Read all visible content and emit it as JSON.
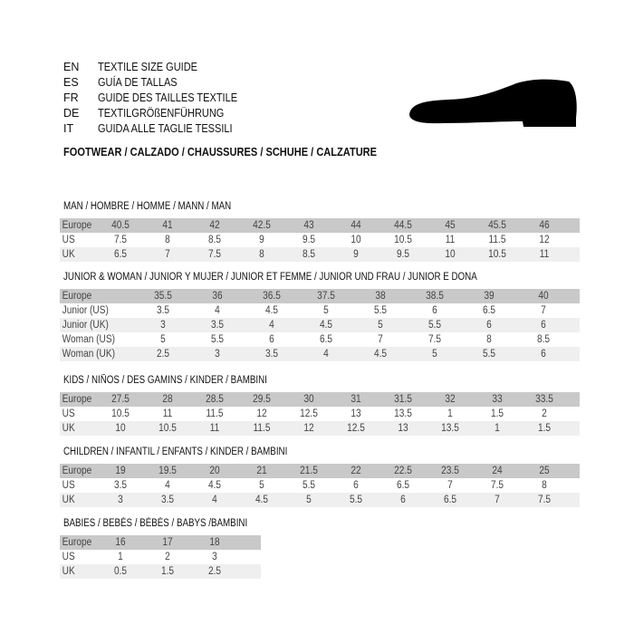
{
  "header": {
    "languages": [
      {
        "code": "EN",
        "title": "TEXTILE SIZE GUIDE"
      },
      {
        "code": "ES",
        "title": "GUÍA DE TALLAS"
      },
      {
        "code": "FR",
        "title": "GUIDE DES TAILLES TEXTILE"
      },
      {
        "code": "DE",
        "title": "TEXTILGRÖßENFÜHRUNG"
      },
      {
        "code": "IT",
        "title": "GUIDA ALLE TAGLIE TESSILI"
      }
    ],
    "footwear": "FOOTWEAR / CALZADO / CHAUSSURES / SCHUHE / CALZATURE",
    "icon": "shoe-icon"
  },
  "sections": [
    {
      "title": "MAN / HOMBRE / HOMME / MANN / MAN",
      "rows": [
        [
          "Europe",
          "40.5",
          "41",
          "42",
          "42.5",
          "43",
          "44",
          "44.5",
          "45",
          "45.5",
          "46"
        ],
        [
          "US",
          "7.5",
          "8",
          "8.5",
          "9",
          "9.5",
          "10",
          "10.5",
          "11",
          "11.5",
          "12"
        ],
        [
          "UK",
          "6.5",
          "7",
          "7.5",
          "8",
          "8.5",
          "9",
          "9.5",
          "10",
          "10.5",
          "11"
        ]
      ]
    },
    {
      "title": "JUNIOR & WOMAN / JUNIOR Y MUJER / JUNIOR ET FEMME / JUNIOR UND FRAU / JUNIOR E DONA",
      "rows": [
        [
          "Europe",
          "35.5",
          "36",
          "36.5",
          "37.5",
          "38",
          "38.5",
          "39",
          "40"
        ],
        [
          "Junior (US)",
          "3.5",
          "4",
          "4.5",
          "5",
          "5.5",
          "6",
          "6.5",
          "7"
        ],
        [
          "Junior (UK)",
          "3",
          "3.5",
          "4",
          "4.5",
          "5",
          "5.5",
          "6",
          "6"
        ],
        [
          "Woman (US)",
          "5",
          "5.5",
          "6",
          "6.5",
          "7",
          "7.5",
          "8",
          "8.5"
        ],
        [
          "Woman (UK)",
          "2.5",
          "3",
          "3.5",
          "4",
          "4.5",
          "5",
          "5.5",
          "6"
        ]
      ]
    },
    {
      "title": "KIDS / NIÑOS / DES GAMINS / KINDER / BAMBINI",
      "rows": [
        [
          "Europe",
          "27.5",
          "28",
          "28.5",
          "29.5",
          "30",
          "31",
          "31.5",
          "32",
          "33",
          "33.5"
        ],
        [
          "US",
          "10.5",
          "11",
          "11.5",
          "12",
          "12.5",
          "13",
          "13.5",
          "1",
          "1.5",
          "2"
        ],
        [
          "UK",
          "10",
          "10.5",
          "11",
          "11.5",
          "12",
          "12.5",
          "13",
          "13.5",
          "1",
          "1.5"
        ]
      ]
    },
    {
      "title": "CHILDREN / INFANTIL / ENFANTS / KINDER / BAMBINI",
      "rows": [
        [
          "Europe",
          "19",
          "19.5",
          "20",
          "21",
          "21.5",
          "22",
          "22.5",
          "23.5",
          "24",
          "25"
        ],
        [
          "US",
          "3.5",
          "4",
          "4.5",
          "5",
          "5.5",
          "6",
          "6.5",
          "7",
          "7.5",
          "8"
        ],
        [
          "UK",
          "3",
          "3.5",
          "4",
          "4.5",
          "5",
          "5.5",
          "6",
          "6.5",
          "7",
          "7.5"
        ]
      ]
    },
    {
      "title": "BABIES  / BEBÉS / BÉBÉS / BABYS /BAMBINI",
      "rows": [
        [
          "Europe",
          "16",
          "17",
          "18"
        ],
        [
          "US",
          "1",
          "2",
          "3"
        ],
        [
          "UK",
          "0.5",
          "1.5",
          "2.5"
        ]
      ]
    }
  ]
}
